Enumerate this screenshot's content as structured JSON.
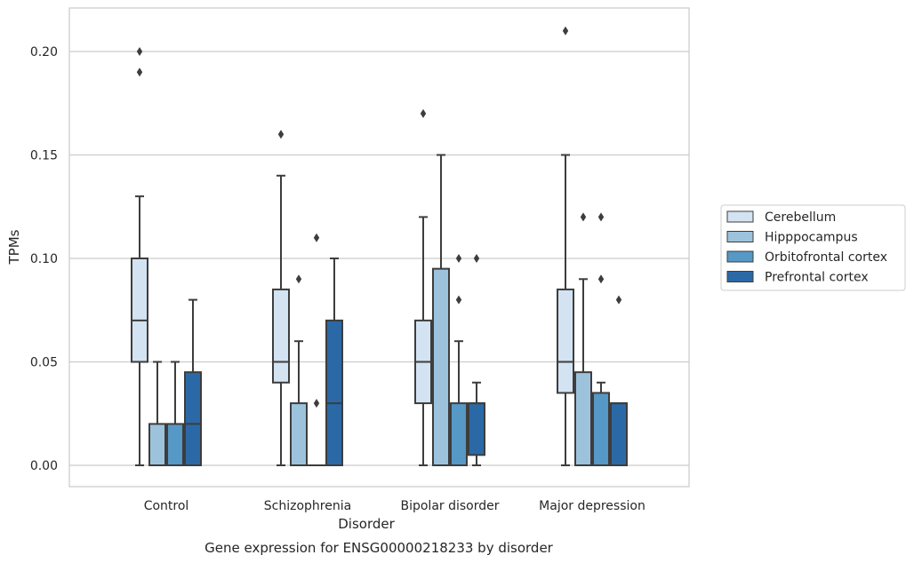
{
  "chart_data": {
    "type": "box",
    "title": "Gene expression for ENSG00000218233 by disorder",
    "xlabel": "Disorder",
    "ylabel": "TPMs",
    "ylim": [
      -0.01,
      0.22
    ],
    "yticks": [
      0.0,
      0.05,
      0.1,
      0.15,
      0.2
    ],
    "ytick_labels": [
      "0.00",
      "0.05",
      "0.10",
      "0.15",
      "0.20"
    ],
    "grid": true,
    "legend_position": "right",
    "categories": [
      "Control",
      "Schizophrenia",
      "Bipolar disorder",
      "Major depression"
    ],
    "series": [
      {
        "name": "Cerebellum",
        "color": "#d3e3f2",
        "boxes": [
          {
            "whislo": 0.0,
            "q1": 0.05,
            "med": 0.07,
            "q3": 0.1,
            "whishi": 0.13,
            "fliers": [
              0.19,
              0.2
            ]
          },
          {
            "whislo": 0.0,
            "q1": 0.04,
            "med": 0.05,
            "q3": 0.085,
            "whishi": 0.14,
            "fliers": [
              0.16
            ]
          },
          {
            "whislo": 0.0,
            "q1": 0.03,
            "med": 0.05,
            "q3": 0.07,
            "whishi": 0.12,
            "fliers": [
              0.17
            ]
          },
          {
            "whislo": 0.0,
            "q1": 0.035,
            "med": 0.05,
            "q3": 0.085,
            "whishi": 0.15,
            "fliers": [
              0.21
            ]
          }
        ]
      },
      {
        "name": "Hipppocampus",
        "color": "#9dc3dc",
        "boxes": [
          {
            "whislo": 0.0,
            "q1": 0.0,
            "med": 0.0,
            "q3": 0.02,
            "whishi": 0.05,
            "fliers": []
          },
          {
            "whislo": 0.0,
            "q1": 0.0,
            "med": 0.0,
            "q3": 0.03,
            "whishi": 0.06,
            "fliers": [
              0.09
            ]
          },
          {
            "whislo": 0.0,
            "q1": 0.0,
            "med": 0.0,
            "q3": 0.095,
            "whishi": 0.15,
            "fliers": []
          },
          {
            "whislo": 0.0,
            "q1": 0.0,
            "med": 0.0,
            "q3": 0.045,
            "whishi": 0.09,
            "fliers": [
              0.12
            ]
          }
        ]
      },
      {
        "name": "Orbitofrontal cortex",
        "color": "#5698c6",
        "boxes": [
          {
            "whislo": 0.0,
            "q1": 0.0,
            "med": 0.0,
            "q3": 0.02,
            "whishi": 0.05,
            "fliers": []
          },
          {
            "whislo": 0.0,
            "q1": 0.0,
            "med": 0.0,
            "q3": 0.0,
            "whishi": 0.0,
            "fliers": [
              0.03,
              0.11
            ]
          },
          {
            "whislo": 0.0,
            "q1": 0.0,
            "med": 0.0,
            "q3": 0.03,
            "whishi": 0.06,
            "fliers": [
              0.08,
              0.1
            ]
          },
          {
            "whislo": 0.0,
            "q1": 0.0,
            "med": 0.0,
            "q3": 0.035,
            "whishi": 0.04,
            "fliers": [
              0.09,
              0.12
            ]
          }
        ]
      },
      {
        "name": "Prefrontal cortex",
        "color": "#2b69a6",
        "boxes": [
          {
            "whislo": 0.0,
            "q1": 0.0,
            "med": 0.02,
            "q3": 0.045,
            "whishi": 0.08,
            "fliers": []
          },
          {
            "whislo": 0.0,
            "q1": 0.0,
            "med": 0.03,
            "q3": 0.07,
            "whishi": 0.1,
            "fliers": []
          },
          {
            "whislo": 0.0,
            "q1": 0.005,
            "med": 0.03,
            "q3": 0.03,
            "whishi": 0.04,
            "fliers": [
              0.1
            ]
          },
          {
            "whislo": 0.0,
            "q1": 0.0,
            "med": 0.03,
            "q3": 0.03,
            "whishi": 0.03,
            "fliers": [
              0.08
            ]
          }
        ]
      }
    ]
  }
}
